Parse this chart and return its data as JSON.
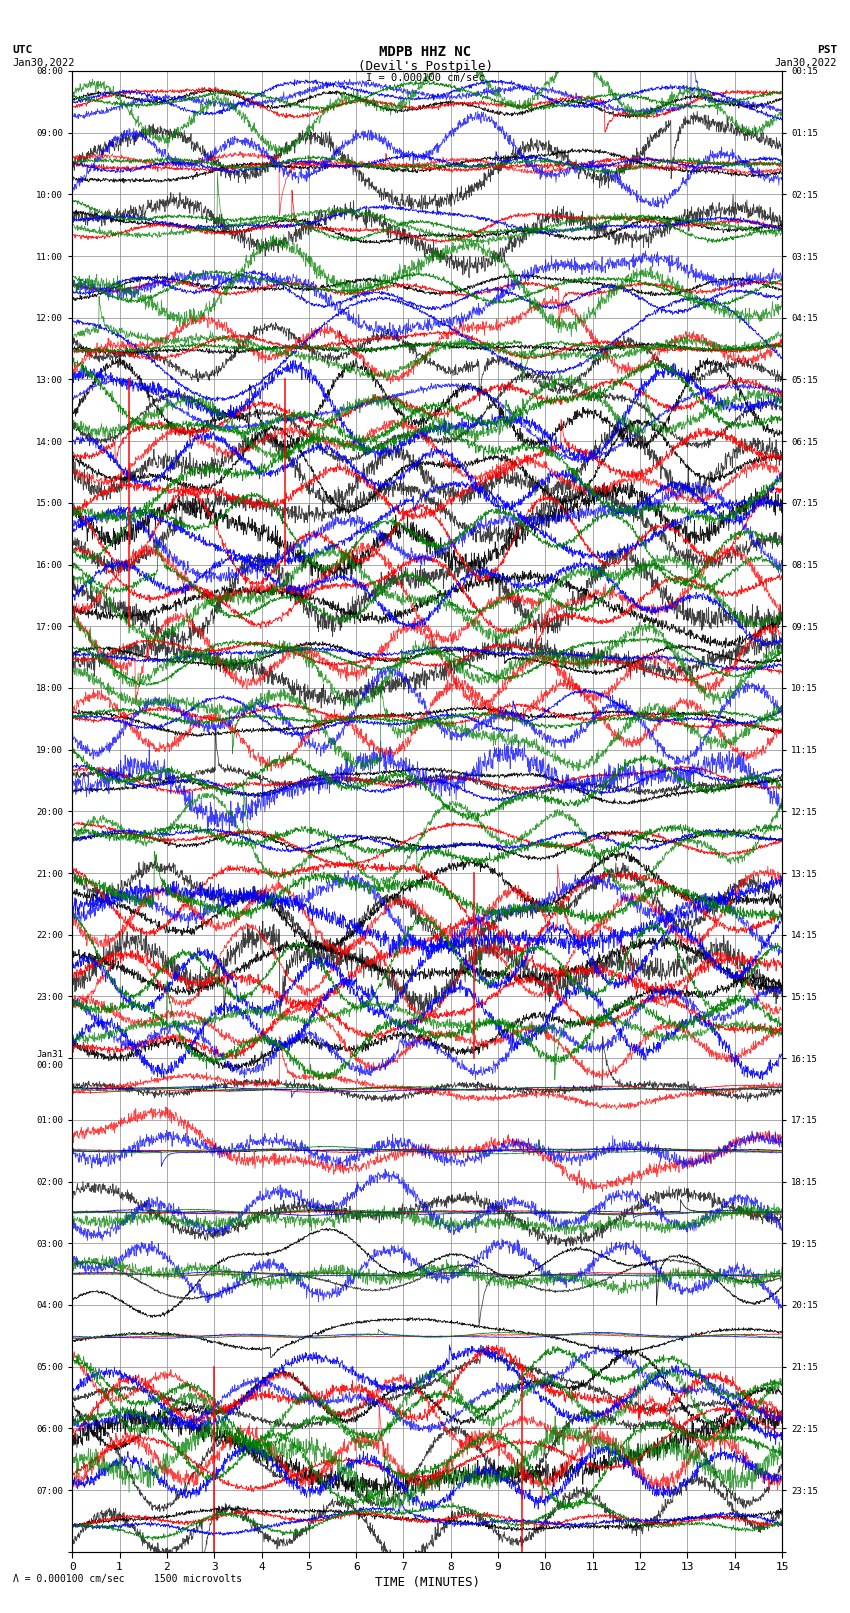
{
  "title_line1": "MDPB HHZ NC",
  "title_line2": "(Devil's Postpile)",
  "scale_text": "I = 0.000100 cm/sec",
  "scale_text2": "1500 microvolts",
  "left_label": "UTC\nJan30,2022",
  "right_label": "PST\nJan30,2022",
  "xlabel": "TIME (MINUTES)",
  "utc_times": [
    "08:00",
    "09:00",
    "10:00",
    "11:00",
    "12:00",
    "13:00",
    "14:00",
    "15:00",
    "16:00",
    "17:00",
    "18:00",
    "19:00",
    "20:00",
    "21:00",
    "22:00",
    "23:00",
    "Jan31\n00:00",
    "01:00",
    "02:00",
    "03:00",
    "04:00",
    "05:00",
    "06:00",
    "07:00"
  ],
  "pst_times": [
    "00:15",
    "01:15",
    "02:15",
    "03:15",
    "04:15",
    "05:15",
    "06:15",
    "07:15",
    "08:15",
    "09:15",
    "10:15",
    "11:15",
    "12:15",
    "13:15",
    "14:15",
    "15:15",
    "16:15",
    "17:15",
    "18:15",
    "19:15",
    "20:15",
    "21:15",
    "22:15",
    "23:15"
  ],
  "n_rows": 24,
  "minutes_per_row": 15,
  "colors": [
    "black",
    "red",
    "blue",
    "green"
  ],
  "bg_color": "#ffffff",
  "grid_color": "#aaaaaa",
  "fig_width": 8.5,
  "fig_height": 16.13,
  "dpi": 100
}
